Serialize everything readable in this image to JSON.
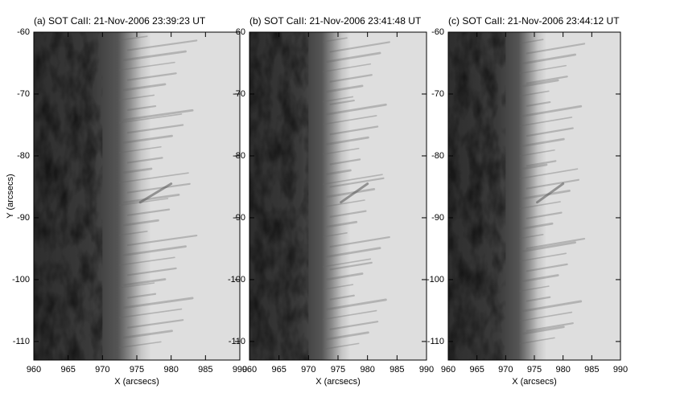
{
  "chart_data": [
    {
      "type": "image",
      "title": "(a) SOT CaII: 21-Nov-2006 23:39:23 UT",
      "xlabel": "X (arcsecs)",
      "ylabel": "Y (arcsecs)",
      "xlim": [
        960,
        990
      ],
      "xticks": [
        960,
        965,
        970,
        975,
        980,
        985,
        990
      ],
      "ylim": [
        -113,
        -60
      ],
      "yticks": [
        -60,
        -70,
        -80,
        -90,
        -100,
        -110
      ]
    },
    {
      "type": "image",
      "title": "(b) SOT CaII: 21-Nov-2006 23:41:48 UT",
      "xlabel": "X (arcsecs)",
      "xlim": [
        960,
        990
      ],
      "xticks": [
        960,
        965,
        970,
        975,
        980,
        985,
        990
      ],
      "ylim": [
        -113,
        -60
      ],
      "yticks": [
        -60,
        -70,
        -80,
        -90,
        -100,
        -110
      ]
    },
    {
      "type": "image",
      "title": "(c) SOT CaII: 21-Nov-2006 23:44:12 UT",
      "xlabel": "X (arcsecs)",
      "xlim": [
        960,
        990
      ],
      "xticks": [
        960,
        965,
        970,
        975,
        980,
        985,
        990
      ],
      "ylim": [
        -113,
        -60
      ],
      "yticks": [
        -60,
        -70,
        -80,
        -90,
        -100,
        -110
      ]
    }
  ]
}
